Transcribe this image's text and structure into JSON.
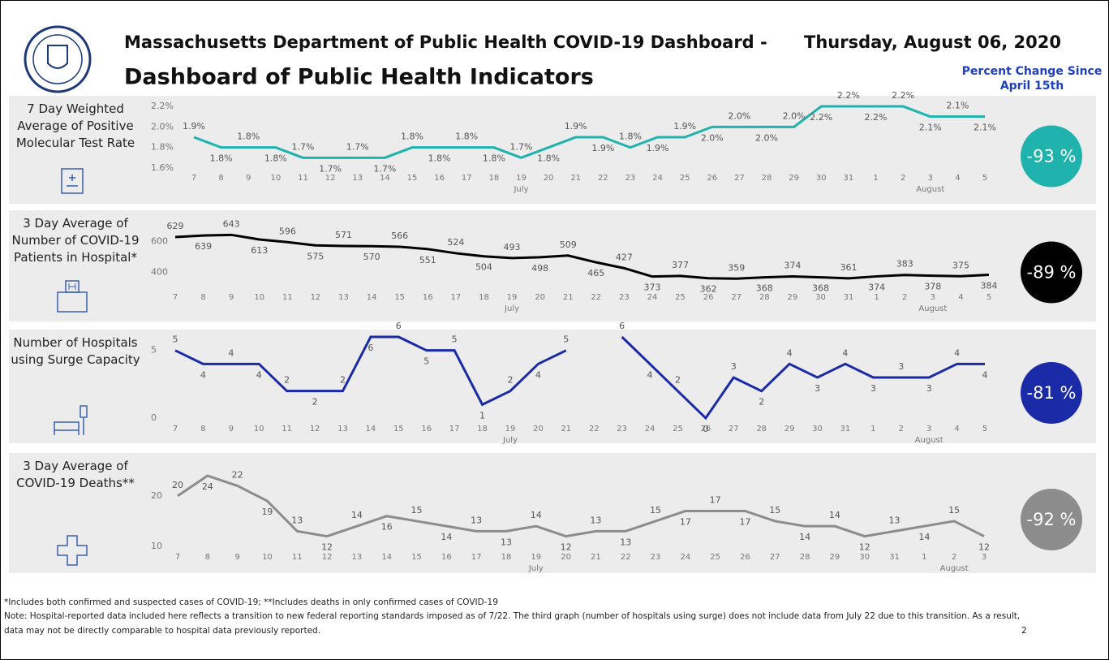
{
  "header": {
    "title": "Massachusetts Department of Public Health COVID-19 Dashboard -",
    "subtitle": "Dashboard of Public Health Indicators",
    "date": "Thursday, August 06, 2020",
    "change_heading": [
      "Percent Change Since",
      "April 15th"
    ]
  },
  "chart_data": [
    {
      "type": "line",
      "label": "7 Day Weighted Average of Positive Molecular Test Rate",
      "color": "#20b2ad",
      "change_label": "-93 %",
      "categories": [
        "7",
        "8",
        "9",
        "10",
        "11",
        "12",
        "13",
        "14",
        "15",
        "16",
        "17",
        "18",
        "19",
        "20",
        "21",
        "22",
        "23",
        "24",
        "25",
        "26",
        "27",
        "28",
        "29",
        "30",
        "31",
        "1",
        "2",
        "3",
        "4",
        "5"
      ],
      "months": [
        "July",
        "August"
      ],
      "values": [
        1.9,
        1.8,
        1.8,
        1.8,
        1.7,
        1.7,
        1.7,
        1.7,
        1.8,
        1.8,
        1.8,
        1.8,
        1.7,
        1.8,
        1.9,
        1.9,
        1.8,
        1.9,
        1.9,
        2.0,
        2.0,
        2.0,
        2.0,
        2.2,
        2.2,
        2.2,
        2.2,
        2.1,
        2.1,
        2.1
      ],
      "value_labels": [
        "1.9%",
        "1.8%",
        "1.8%",
        "1.8%",
        "1.7%",
        "1.7%",
        "1.7%",
        "1.7%",
        "1.8%",
        "1.8%",
        "1.8%",
        "1.8%",
        "1.7%",
        "1.8%",
        "1.9%",
        "1.9%",
        "1.8%",
        "1.9%",
        "1.9%",
        "2.0%",
        "2.0%",
        "2.0%",
        "2.0%",
        "2.2%",
        "2.2%",
        "2.2%",
        "2.2%",
        "2.1%",
        "2.1%",
        "2.1%"
      ],
      "ylim": [
        1.6,
        2.2
      ],
      "yticks": [
        {
          "value": 1.6,
          "label": "1.6%"
        },
        {
          "value": 1.8,
          "label": "1.8%"
        },
        {
          "value": 2.0,
          "label": "2.0%"
        },
        {
          "value": 2.2,
          "label": "2.2%"
        }
      ]
    },
    {
      "type": "line",
      "label": "3 Day Average of Number of COVID-19 Patients in Hospital*",
      "color": "#000000",
      "change_label": "-89 %",
      "categories": [
        "7",
        "8",
        "9",
        "10",
        "11",
        "12",
        "13",
        "14",
        "15",
        "16",
        "17",
        "18",
        "19",
        "20",
        "21",
        "22",
        "23",
        "24",
        "25",
        "26",
        "27",
        "28",
        "29",
        "30",
        "31",
        "1",
        "2",
        "3",
        "4",
        "5"
      ],
      "months": [
        "July",
        "August"
      ],
      "values": [
        629,
        639,
        643,
        613,
        596,
        575,
        571,
        570,
        566,
        551,
        524,
        504,
        493,
        498,
        509,
        465,
        427,
        373,
        377,
        362,
        359,
        368,
        374,
        368,
        361,
        374,
        383,
        378,
        375,
        384
      ],
      "ylim": [
        350,
        650
      ],
      "yticks": [
        400,
        600
      ]
    },
    {
      "type": "line",
      "label": "Number of Hospitals using Surge Capacity",
      "color": "#1b2aa6",
      "change_label": "-81 %",
      "categories": [
        "7",
        "8",
        "9",
        "10",
        "11",
        "12",
        "13",
        "14",
        "15",
        "16",
        "17",
        "18",
        "19",
        "20",
        "21",
        "22",
        "23",
        "24",
        "25",
        "26",
        "27",
        "28",
        "29",
        "30",
        "31",
        "1",
        "2",
        "3",
        "4",
        "5"
      ],
      "months": [
        "July",
        "August"
      ],
      "values": [
        5,
        4,
        4,
        4,
        2,
        2,
        2,
        6,
        6,
        5,
        5,
        1,
        2,
        4,
        5,
        null,
        6,
        4,
        2,
        0,
        3,
        2,
        4,
        3,
        4,
        3,
        3,
        3,
        4,
        4
      ],
      "ylim": [
        0,
        6
      ],
      "yticks": [
        0,
        5
      ]
    },
    {
      "type": "line",
      "label": "3 Day Average of COVID-19 Deaths**",
      "color": "#8c8c8c",
      "change_label": "-92 %",
      "categories": [
        "7",
        "8",
        "9",
        "10",
        "11",
        "12",
        "13",
        "14",
        "15",
        "16",
        "17",
        "18",
        "19",
        "20",
        "21",
        "22",
        "23",
        "24",
        "25",
        "26",
        "27",
        "28",
        "29",
        "30",
        "31",
        "1",
        "2",
        "3"
      ],
      "months": [
        "July",
        "August"
      ],
      "values": [
        20,
        24,
        22,
        19,
        13,
        12,
        14,
        16,
        15,
        14,
        13,
        13,
        14,
        12,
        13,
        13,
        15,
        17,
        17,
        17,
        15,
        14,
        14,
        12,
        13,
        14,
        15,
        12
      ],
      "ylim": [
        10,
        24
      ],
      "yticks": [
        10,
        20
      ]
    }
  ],
  "footnotes": [
    "*Includes both confirmed and suspected cases of COVID-19; **Includes deaths in only confirmed cases of COVID-19",
    "Note: Hospital-reported data included here reflects a transition to new federal reporting standards imposed as of 7/22. The third graph (number of hospitals using surge) does not include data from July 22 due to this transition. As a result,",
    "data may not be directly comparable to hospital data previously reported."
  ],
  "page_number": 2
}
